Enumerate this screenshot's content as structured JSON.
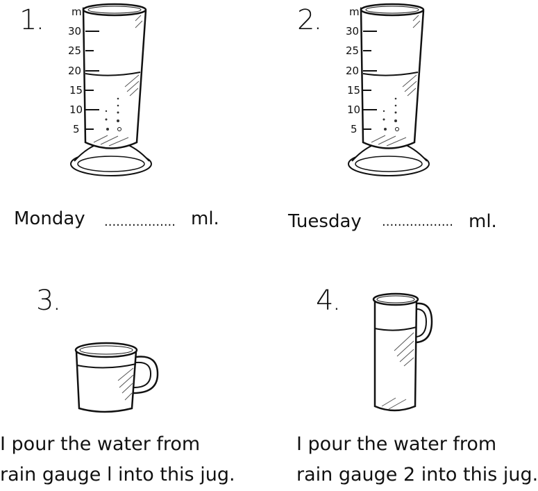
{
  "items": [
    {
      "number": "1.",
      "day": "Monday",
      "blank": "..................",
      "unit": "ml.",
      "gauge": {
        "unit_label": "ml",
        "scale_labels": [
          "30",
          "25",
          "20",
          "15",
          "10",
          "5"
        ],
        "water_level_ml": 20
      }
    },
    {
      "number": "2.",
      "day": "Tuesday",
      "blank": "..................",
      "unit": "ml.",
      "gauge": {
        "unit_label": "ml",
        "scale_labels": [
          "30",
          "25",
          "20",
          "15",
          "10",
          "5"
        ],
        "water_level_ml": 20
      }
    },
    {
      "number": "3.",
      "caption_line1": "I pour the water from",
      "caption_line2": "rain gauge l into this jug."
    },
    {
      "number": "4.",
      "caption_line1": "I pour the water from",
      "caption_line2": "rain gauge 2 into this jug."
    }
  ]
}
